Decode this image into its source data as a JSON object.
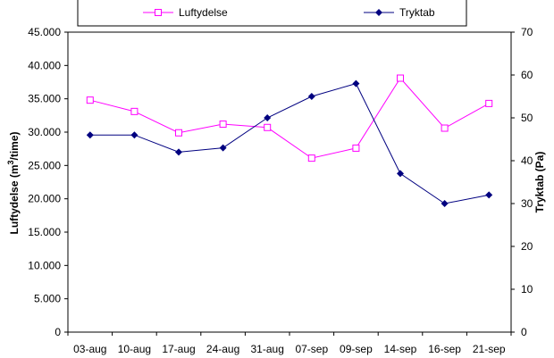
{
  "chart_data": {
    "type": "line",
    "categories": [
      "03-aug",
      "10-aug",
      "17-aug",
      "24-aug",
      "31-aug",
      "07-sep",
      "09-sep",
      "14-sep",
      "16-sep",
      "21-sep"
    ],
    "series": [
      {
        "name": "Luftydelse",
        "axis": "left",
        "color": "#ff00ff",
        "marker": "open-square",
        "values": [
          34800,
          33100,
          29900,
          31200,
          30700,
          26100,
          27600,
          38100,
          30600,
          34300
        ]
      },
      {
        "name": "Tryktab",
        "axis": "right",
        "color": "#000080",
        "marker": "filled-diamond",
        "values": [
          46,
          46,
          42,
          43,
          50,
          55,
          58,
          37,
          30,
          32
        ]
      }
    ],
    "y_left": {
      "label_main": "Luftydelse (m",
      "label_sup": "3",
      "label_end": "/time)",
      "range": [
        0,
        45000
      ],
      "tick_labels": [
        "0",
        "5.000",
        "10.000",
        "15.000",
        "20.000",
        "25.000",
        "30.000",
        "35.000",
        "40.000",
        "45.000"
      ]
    },
    "y_right": {
      "label": "Tryktab (Pa)",
      "range": [
        0,
        70
      ],
      "tick_labels": [
        "0",
        "10",
        "20",
        "30",
        "40",
        "50",
        "60",
        "70"
      ]
    },
    "grid": false,
    "legend_placement": "top"
  }
}
